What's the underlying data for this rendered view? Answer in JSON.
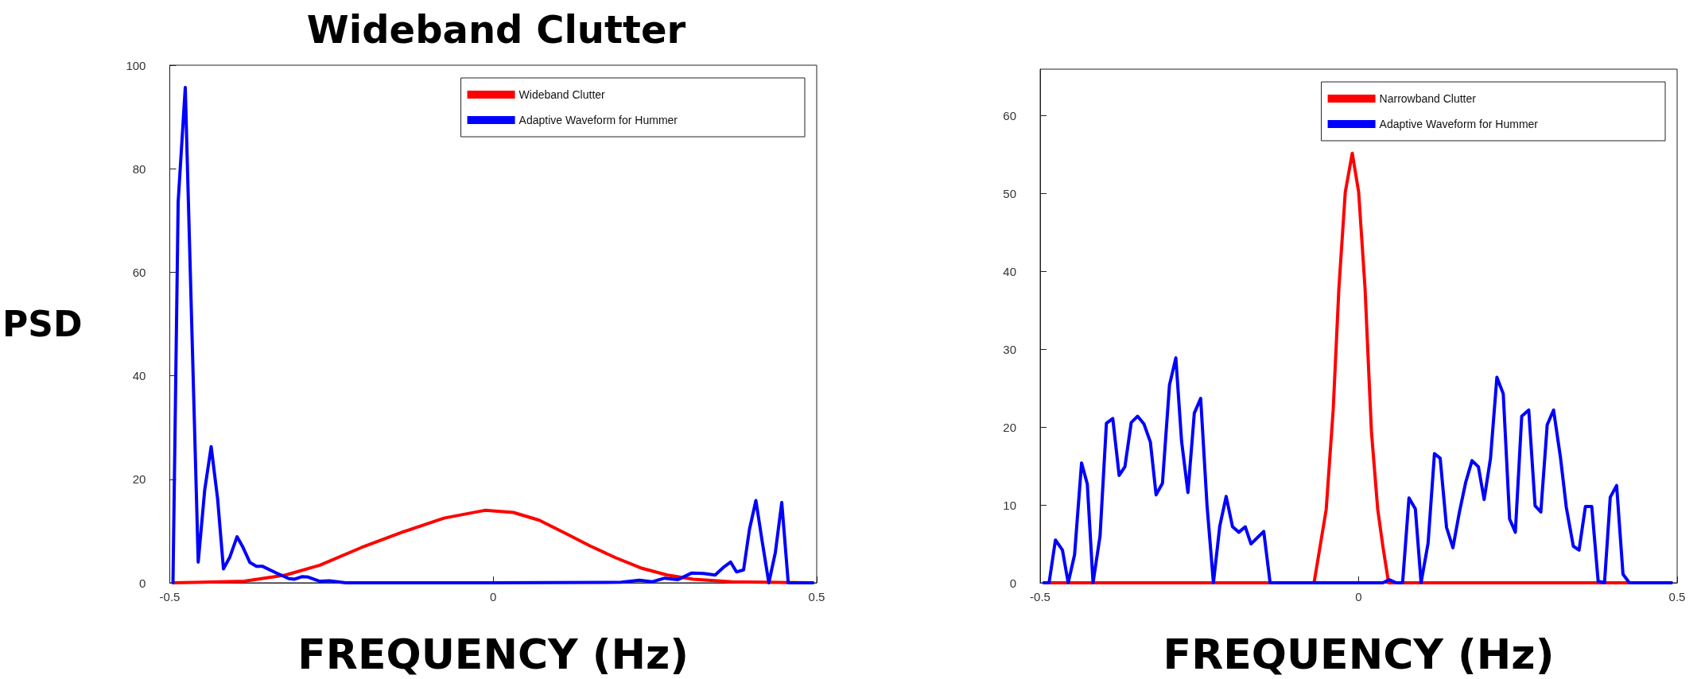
{
  "chart_data": [
    {
      "type": "line",
      "title": "Wideband Clutter",
      "xlabel": "FREQUENCY (Hz)",
      "ylabel": "PSD",
      "xlim": [
        -0.5,
        0.5
      ],
      "xticks": [
        -0.5,
        0,
        0.5
      ],
      "ylim": [
        0,
        100
      ],
      "yticks": [
        0,
        20,
        40,
        60,
        80,
        100
      ],
      "grid": false,
      "legend": "top right",
      "marker": "none",
      "line_style": "solid",
      "series": [
        {
          "name": "Wideband Clutter",
          "color": "#ff0000",
          "x": [
            -0.494,
            -0.385,
            -0.321,
            -0.268,
            -0.204,
            -0.14,
            -0.076,
            -0.013,
            0.031,
            0.071,
            0.111,
            0.15,
            0.19,
            0.23,
            0.269,
            0.309,
            0.369,
            0.494
          ],
          "values": [
            0,
            0.3,
            1.5,
            3.4,
            6.8,
            9.8,
            12.5,
            14,
            13.6,
            12.1,
            9.6,
            7.1,
            4.8,
            2.8,
            1.5,
            0.7,
            0.2,
            0
          ]
        },
        {
          "name": "Adaptive Waveform for Hummer",
          "color": "#0000ff",
          "x": [
            -0.495,
            -0.487,
            -0.476,
            -0.456,
            -0.446,
            -0.436,
            -0.426,
            -0.417,
            -0.407,
            -0.396,
            -0.387,
            -0.376,
            -0.366,
            -0.357,
            -0.337,
            -0.316,
            -0.307,
            -0.295,
            -0.286,
            -0.268,
            -0.253,
            -0.228,
            -0.209,
            -0.008,
            0.198,
            0.226,
            0.246,
            0.265,
            0.285,
            0.307,
            0.325,
            0.343,
            0.357,
            0.367,
            0.376,
            0.387,
            0.396,
            0.406,
            0.416,
            0.426,
            0.436,
            0.446,
            0.456,
            0.494
          ],
          "values": [
            0,
            73.6,
            95.7,
            4,
            17.9,
            26.3,
            16.2,
            2.7,
            5,
            8.9,
            6.9,
            3.9,
            3.2,
            3.2,
            2,
            0.8,
            0.7,
            1.2,
            1.1,
            0.3,
            0.4,
            0,
            0,
            0,
            0.1,
            0.5,
            0.2,
            0.9,
            0.6,
            1.9,
            1.8,
            1.5,
            3.1,
            4,
            2.1,
            2.5,
            10.3,
            15.9,
            7.8,
            0,
            5.8,
            15.5,
            0,
            0
          ]
        }
      ]
    },
    {
      "type": "line",
      "xlabel": "FREQUENCY (Hz)",
      "xlim": [
        -0.5,
        0.5
      ],
      "xticks": [
        -0.5,
        0,
        0.5
      ],
      "ylim": [
        0,
        66
      ],
      "yticks": [
        0,
        10,
        20,
        30,
        40,
        50,
        60
      ],
      "grid": false,
      "legend": "top right",
      "marker": "none",
      "line_style": "solid",
      "series": [
        {
          "name": "Narrowband Clutter",
          "color": "#ff0000",
          "x": [
            -0.494,
            -0.07,
            -0.051,
            -0.04,
            -0.031,
            -0.021,
            -0.01,
            0,
            0.01,
            0.02,
            0.03,
            0.038,
            0.047,
            0.491
          ],
          "values": [
            0,
            0,
            9.4,
            22.2,
            37.9,
            50.2,
            55.2,
            50.2,
            37.9,
            19.5,
            9.4,
            4.7,
            0,
            0
          ]
        },
        {
          "name": "Adaptive Waveform for Hummer",
          "color": "#0000ff",
          "x": [
            -0.494,
            -0.486,
            -0.476,
            -0.465,
            -0.456,
            -0.446,
            -0.435,
            -0.426,
            -0.417,
            -0.406,
            -0.396,
            -0.386,
            -0.376,
            -0.367,
            -0.357,
            -0.347,
            -0.337,
            -0.327,
            -0.318,
            -0.308,
            -0.297,
            -0.287,
            -0.278,
            -0.268,
            -0.258,
            -0.248,
            -0.238,
            -0.228,
            -0.218,
            -0.208,
            -0.198,
            -0.188,
            -0.178,
            -0.169,
            -0.159,
            -0.149,
            -0.139,
            0.038,
            0.048,
            0.059,
            0.069,
            0.079,
            0.089,
            0.098,
            0.109,
            0.119,
            0.128,
            0.138,
            0.148,
            0.158,
            0.168,
            0.178,
            0.188,
            0.197,
            0.207,
            0.217,
            0.227,
            0.237,
            0.246,
            0.256,
            0.267,
            0.277,
            0.286,
            0.296,
            0.306,
            0.317,
            0.326,
            0.337,
            0.346,
            0.356,
            0.366,
            0.376,
            0.386,
            0.395,
            0.405,
            0.415,
            0.425,
            0.491
          ],
          "values": [
            0,
            0,
            5.5,
            4.2,
            0,
            3.6,
            15.4,
            12.7,
            0,
            6,
            20.5,
            21.1,
            13.8,
            14.9,
            20.6,
            21.4,
            20.4,
            18.1,
            11.3,
            12.8,
            25.4,
            28.9,
            18.2,
            11.6,
            21.8,
            23.7,
            9.9,
            0,
            7.3,
            11.1,
            7.2,
            6.5,
            7.2,
            5,
            5.8,
            6.6,
            0,
            0,
            0.4,
            0,
            0,
            10.9,
            9.5,
            0,
            5.1,
            16.6,
            16,
            7.1,
            4.5,
            9,
            12.9,
            15.7,
            14.9,
            10.7,
            16,
            26.4,
            24.3,
            8.2,
            6.5,
            21.4,
            22.2,
            9.9,
            9.1,
            20.3,
            22.2,
            16,
            9.7,
            4.7,
            4.2,
            9.8,
            9.8,
            0.2,
            0,
            11,
            12.5,
            1.1,
            0,
            0
          ]
        }
      ]
    }
  ]
}
